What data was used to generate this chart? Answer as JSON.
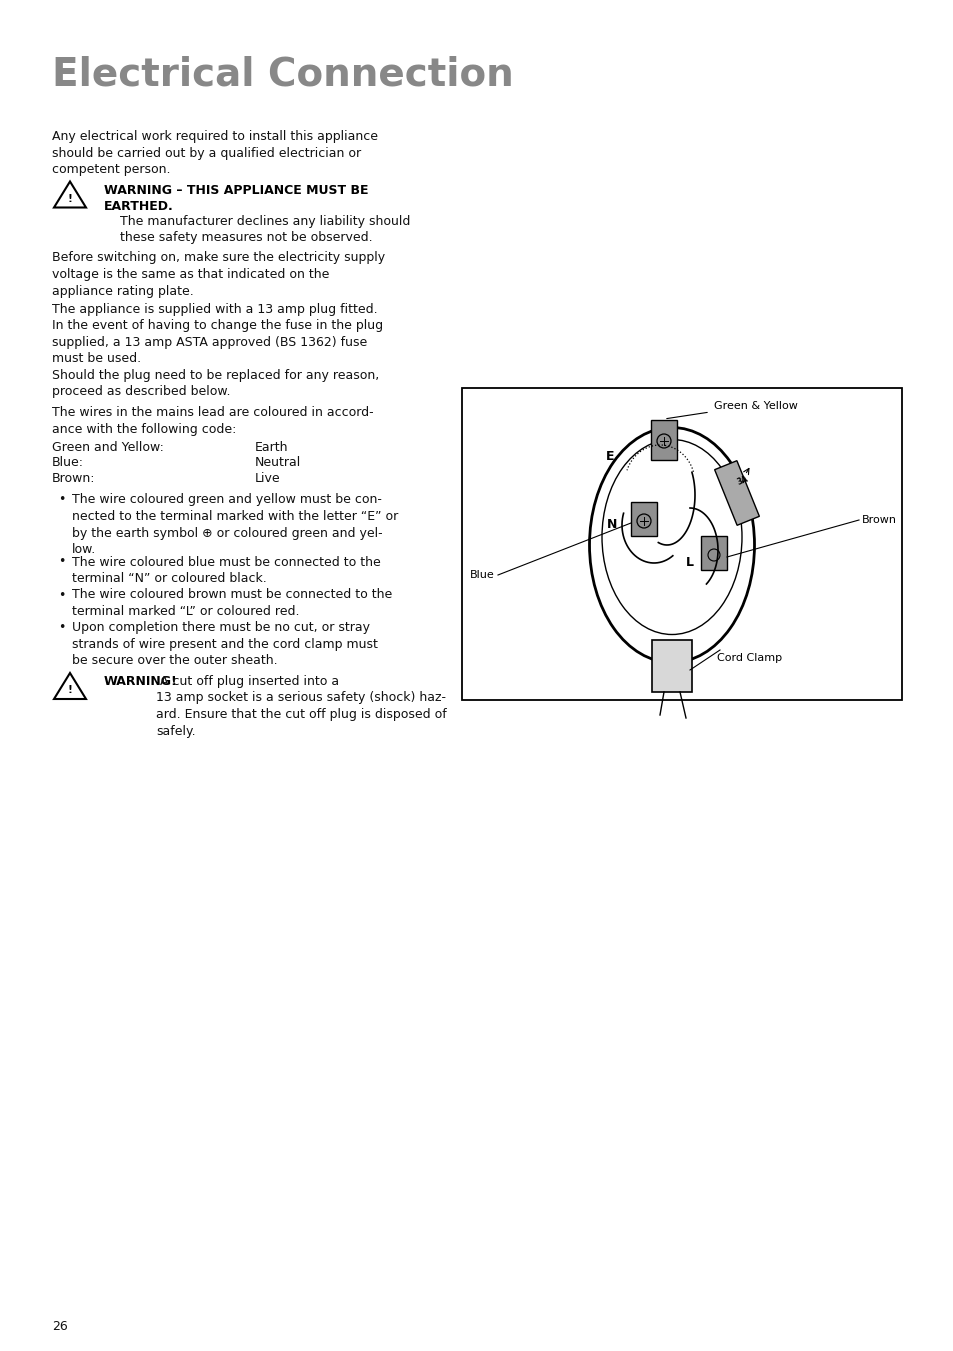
{
  "title": "Electrical Connection",
  "title_color": "#888888",
  "background_color": "#ffffff",
  "page_number": "26",
  "para1": "Any electrical work required to install this appliance\nshould be carried out by a qualified electrician or\ncompetent person.",
  "warning1_bold": "WARNING – THIS APPLIANCE MUST BE\nEARTHED.",
  "warning1_body": "    The manufacturer declines any liability should\n    these safety measures not be observed.",
  "para2": "Before switching on, make sure the electricity supply\nvoltage is the same as that indicated on the\nappliance rating plate.",
  "para3": "The appliance is supplied with a 13 amp plug fitted.\nIn the event of having to change the fuse in the plug\nsupplied, a 13 amp ASTA approved (BS 1362) fuse\nmust be used.",
  "para4": "Should the plug need to be replaced for any reason,\nproceed as described below.",
  "para5": "The wires in the mains lead are coloured in accord-\nance with the following code:",
  "wire_rows": [
    [
      "Green and Yellow:",
      "Earth"
    ],
    [
      "Blue:",
      "Neutral"
    ],
    [
      "Brown:",
      "Live"
    ]
  ],
  "bullet1": "The wire coloured green and yellow must be con-\nnected to the terminal marked with the letter “E” or\nby the earth symbol ⊕ or coloured green and yel-\nlow.",
  "bullet2": "The wire coloured blue must be connected to the\nterminal “N” or coloured black.",
  "bullet3": "The wire coloured brown must be connected to the\nterminal marked “L” or coloured red.",
  "bullet4": "Upon completion there must be no cut, or stray\nstrands of wire present and the cord clamp must\nbe secure over the outer sheath.",
  "warning2_bold": "WARNING!",
  "warning2_body": " A cut off plug inserted into a\n13 amp socket is a serious safety (shock) haz-\nard. Ensure that the cut off plug is disposed of\nsafely.",
  "diagram_labels": {
    "green_yellow": "Green & Yellow",
    "brown": "Brown",
    "blue": "Blue",
    "cord_clamp": "Cord Clamp",
    "E": "E",
    "N": "N",
    "L": "L"
  }
}
